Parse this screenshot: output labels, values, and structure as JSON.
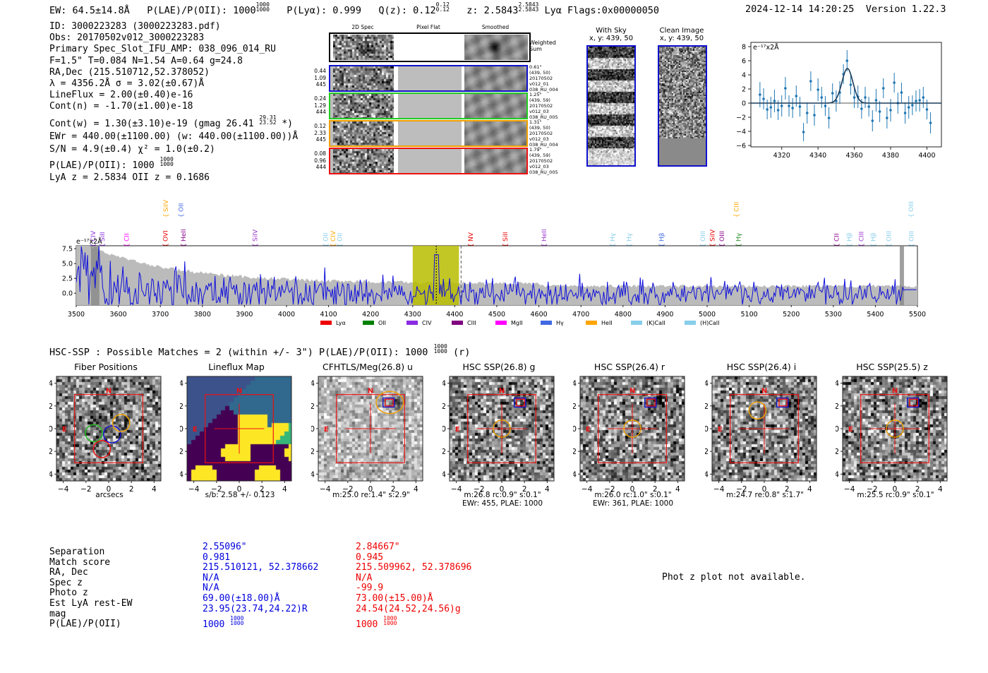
{
  "header": {
    "ew": "EW: 64.5±14.8Å",
    "plae_label": "P(LAE)/P(OII): 1000",
    "plae_frac": [
      "1000",
      "1000"
    ],
    "plya": "P(Lyα): 0.999",
    "qz_label": "Q(z): 0.12",
    "qz_frac": [
      "0.12",
      "0.12"
    ],
    "z_label": "z: 2.5843",
    "z_frac": [
      "2.5843",
      "2.5843"
    ],
    "lya_flags": "Lyα  Flags:0x00000050",
    "timestamp": "2024-12-14 14:20:25",
    "version": "Version 1.22.3"
  },
  "info": {
    "id": "ID: 3000223283 (3000223283.pdf)",
    "obs": "Obs: 20170502v012_3000223283",
    "primary": "Primary Spec_Slot_IFU_AMP: 038_096_014_RU",
    "fparams": "F=1.5\"  T=0.084  N=1.54  A=0.64  g=24.8",
    "radec": "RA,Dec (215.510712,52.378052)",
    "lambda": "λ = 4356.2Å   σ = 3.02(±0.67)Å",
    "lineflux": "LineFlux = 2.00(±0.40)e-16",
    "contn": "Cont(n) = -1.70(±1.00)e-18",
    "contw_a": "Cont(w) = 1.30(±3.10)e-19 (gmag 26.41",
    "contw_frac": [
      "29.31",
      "23.52"
    ],
    "contw_b": "*)",
    "ewr": "EWr = 440.00(±1100.00) (w: 440.00(±1100.00))Å",
    "sn": "S/N = 4.9(±0.4)  χ² = 1.0(±0.2)",
    "plae": "P(LAE)/P(OII): 1000",
    "plae_frac": [
      "1000",
      "1000"
    ],
    "zline": "LyA z = 2.5834  OII z = 0.1686"
  },
  "spec2d": {
    "col_titles": [
      "2D Spec",
      "Pixel Flat",
      "Smoothed"
    ],
    "weighted_label": "Weighted Sum",
    "rows": [
      {
        "nums": [
          "0.44",
          "1.09",
          "445"
        ],
        "meta": [
          "0.61\"",
          "(439, 50)",
          "20170502",
          "v012_01",
          "038_RU_004"
        ],
        "color": "#1010cc"
      },
      {
        "nums": [
          "0.24",
          "1.29",
          "444"
        ],
        "meta": [
          "1.25\"",
          "(439, 59)",
          "20170502",
          "v012_03",
          "038_RU_005"
        ],
        "color": "#22cc22"
      },
      {
        "nums": [
          "0.12",
          "2.33",
          "445"
        ],
        "meta": [
          "1.31\"",
          "(439, 50)",
          "20170502",
          "v012_03",
          "038_RU_004"
        ],
        "color": "#f0a000"
      },
      {
        "nums": [
          "0.08",
          "0.96",
          "444"
        ],
        "meta": [
          "1.79\"",
          "(439, 59)",
          "20170502",
          "v012_03",
          "038_RU_005"
        ],
        "color": "#ee1111"
      }
    ]
  },
  "sky": {
    "with_sky": {
      "title": "With Sky",
      "coords": "x, y: 439, 50"
    },
    "clean": {
      "title": "Clean Image",
      "coords": "x, y: 439, 50"
    }
  },
  "zoom_chart": {
    "type": "line",
    "unit_label": "e⁻¹⁷x2Å",
    "xlim": [
      4303,
      4408
    ],
    "ylim": [
      -6.2,
      8.6
    ],
    "xticks": [
      4320,
      4340,
      4360,
      4380,
      4400
    ],
    "yticks": [
      -6,
      -4,
      -2,
      0,
      2,
      4,
      6,
      8
    ],
    "points": [
      [
        4308,
        1.2
      ],
      [
        4310,
        0.6
      ],
      [
        4312,
        -0.9
      ],
      [
        4314,
        -0.6
      ],
      [
        4316,
        0.3
      ],
      [
        4318,
        -1.0
      ],
      [
        4320,
        -0.4
      ],
      [
        4322,
        2.1
      ],
      [
        4324,
        -0.4
      ],
      [
        4326,
        -0.7
      ],
      [
        4328,
        1.0
      ],
      [
        4330,
        -0.5
      ],
      [
        4332,
        -4.1
      ],
      [
        4334,
        -1.4
      ],
      [
        4336,
        3.1
      ],
      [
        4338,
        -1.7
      ],
      [
        4340,
        1.9
      ],
      [
        4342,
        0.8
      ],
      [
        4344,
        -0.4
      ],
      [
        4346,
        -2.1
      ],
      [
        4348,
        1.4
      ],
      [
        4350,
        0.3
      ],
      [
        4352,
        1.5
      ],
      [
        4354,
        4.1
      ],
      [
        4356,
        6.0
      ],
      [
        4358,
        2.6
      ],
      [
        4360,
        0.8
      ],
      [
        4362,
        0.9
      ],
      [
        4364,
        -0.8
      ],
      [
        4366,
        0.8
      ],
      [
        4368,
        -0.5
      ],
      [
        4370,
        -2.5
      ],
      [
        4372,
        0.4
      ],
      [
        4374,
        -1.2
      ],
      [
        4376,
        2.1
      ],
      [
        4378,
        -2.1
      ],
      [
        4380,
        -1.0
      ],
      [
        4382,
        2.9
      ],
      [
        4384,
        0.0
      ],
      [
        4386,
        1.5
      ],
      [
        4388,
        -1.4
      ],
      [
        4390,
        -0.6
      ],
      [
        4392,
        -0.3
      ],
      [
        4394,
        0.3
      ],
      [
        4396,
        0.4
      ],
      [
        4398,
        0.8
      ],
      [
        4400,
        -0.9
      ],
      [
        4402,
        -2.8
      ]
    ],
    "errors": [
      1.8,
      1.5,
      1.4,
      1.5,
      1.6,
      1.4,
      1.5,
      1.6,
      1.5,
      1.4,
      1.5,
      1.4,
      1.3,
      1.5,
      1.4,
      1.5,
      1.6,
      1.5,
      1.4,
      1.5,
      1.4,
      1.5,
      1.6,
      1.4,
      1.5,
      1.4,
      1.5,
      1.6,
      1.4,
      1.5,
      1.4,
      1.5,
      1.6,
      1.5,
      1.4,
      1.5,
      1.6,
      1.4,
      1.5,
      1.4,
      1.5,
      1.6,
      1.4,
      1.5,
      1.6,
      1.5,
      1.4,
      1.5
    ],
    "fit": {
      "amp": 4.9,
      "center": 4356.2,
      "sigma": 3.02
    }
  },
  "full_spectrum": {
    "type": "line",
    "unit_label": "e⁻¹⁷x2Å",
    "xlim": [
      3500,
      5500
    ],
    "ylim": [
      -2,
      8
    ],
    "xticks": [
      3500,
      3600,
      3700,
      3800,
      3900,
      4000,
      4100,
      4200,
      4300,
      4400,
      4500,
      4600,
      4700,
      4800,
      4900,
      5000,
      5100,
      5200,
      5300,
      5400,
      5500
    ],
    "yticks": [
      "0.0",
      "2.5",
      "5.0",
      "7.5"
    ],
    "highlight": [
      4300,
      4410
    ],
    "dashed": 4415,
    "line_labels": [
      {
        "name": "CIV",
        "x": 3540,
        "color": "#8a2be2",
        "high": false
      },
      {
        "name": "SiII",
        "x": 3562,
        "color": "#8a2be2",
        "high": false
      },
      {
        "name": "CII",
        "x": 3620,
        "color": "#ff00ff",
        "high": false
      },
      {
        "name": "SiIV",
        "x": 3713,
        "color": "#ffa500",
        "high": true
      },
      {
        "name": "OVI",
        "x": 3712,
        "color": "#ee0000",
        "high": false
      },
      {
        "name": "OII",
        "x": 3749,
        "color": "#4169e1",
        "high": true
      },
      {
        "name": "HeII",
        "x": 3755,
        "color": "#8b008b",
        "high": false
      },
      {
        "name": "SiIV",
        "x": 3925,
        "color": "#9932cc",
        "high": false
      },
      {
        "name": "OII",
        "x": 4093,
        "color": "#87ceeb",
        "high": false
      },
      {
        "name": "CIV",
        "x": 4111,
        "color": "#ffa500",
        "high": false
      },
      {
        "name": "OII",
        "x": 4127,
        "color": "#87ceeb",
        "high": false
      },
      {
        "name": "NV",
        "x": 4438,
        "color": "#ee0000",
        "high": false
      },
      {
        "name": "SiII",
        "x": 4520,
        "color": "#ee0000",
        "high": false
      },
      {
        "name": "HeII",
        "x": 4612,
        "color": "#9932cc",
        "high": false
      },
      {
        "name": "Hγ",
        "x": 4775,
        "color": "#87ceeb",
        "high": false
      },
      {
        "name": "Hγ",
        "x": 4815,
        "color": "#87ceeb",
        "high": false
      },
      {
        "name": "Hβ",
        "x": 4892,
        "color": "#4169e1",
        "high": false
      },
      {
        "name": "OIII",
        "x": 4990,
        "color": "#87ceeb",
        "high": false
      },
      {
        "name": "SiIV",
        "x": 5013,
        "color": "#ee0000",
        "high": false
      },
      {
        "name": "OIII",
        "x": 5035,
        "color": "#8b008b",
        "high": false
      },
      {
        "name": "CIII",
        "x": 5070,
        "color": "#ffa500",
        "high": true
      },
      {
        "name": "Hγ",
        "x": 5075,
        "color": "#228b22",
        "high": false
      },
      {
        "name": "CII",
        "x": 5308,
        "color": "#8b008b",
        "high": false
      },
      {
        "name": "Hβ",
        "x": 5338,
        "color": "#87ceeb",
        "high": false
      },
      {
        "name": "CIII",
        "x": 5367,
        "color": "#9932cc",
        "high": false
      },
      {
        "name": "Hβ",
        "x": 5395,
        "color": "#87ceeb",
        "high": false
      },
      {
        "name": "OIII",
        "x": 5432,
        "color": "#87ceeb",
        "high": false
      },
      {
        "name": "OIII",
        "x": 5485,
        "color": "#87ceeb",
        "high": true
      },
      {
        "name": "OIII",
        "x": 5486,
        "color": "#87ceeb",
        "high": false
      }
    ],
    "legend": [
      {
        "name": "Lyα",
        "color": "#ee0000"
      },
      {
        "name": "OII",
        "color": "#008000"
      },
      {
        "name": "CIV",
        "color": "#8a2be2"
      },
      {
        "name": "CIII",
        "color": "#800080"
      },
      {
        "name": "MgII",
        "color": "#ff00ff"
      },
      {
        "name": "Hγ",
        "color": "#4169e1"
      },
      {
        "name": "HeII",
        "color": "#ffa500"
      },
      {
        "name": "(K)CaII",
        "color": "#87ceeb"
      },
      {
        "name": "(H)CaII",
        "color": "#87ceeb"
      }
    ]
  },
  "hsc": {
    "summary_a": "HSC-SSP : Possible Matches = 2 (within +/- 3\")  P(LAE)/P(OII): 1000",
    "summary_frac": [
      "1000",
      "1000"
    ],
    "summary_b": "(r)"
  },
  "panels": [
    {
      "title": "Fiber Positions",
      "cap1": "arcsecs",
      "cap2": ""
    },
    {
      "title": "Lineflux Map",
      "cap1": "s/b: 2.58 +/- 0.123",
      "cap2": ""
    },
    {
      "title": "CFHTLS/Meg(26.8) u",
      "cap1": "m:25.0  re:1.4\"  s:2.9\"",
      "cap2": ""
    },
    {
      "title": "HSC SSP(26.8) g",
      "cap1": "m:26.8 rc:0.9\"  s:0.1\"",
      "cap2": "EWr: 455, PLAE: 1000"
    },
    {
      "title": "HSC SSP(26.4) r",
      "cap1": "m:26.0 rc:1.0\"  s:0.1\"",
      "cap2": "EWr: 361, PLAE: 1000"
    },
    {
      "title": "HSC SSP(26.4) i",
      "cap1": "m:24.7  re:0.8\"  s:1.7\"",
      "cap2": ""
    },
    {
      "title": "HSC SSP(25.5) z",
      "cap1": "m:25.5 rc:0.9\"  s:0.1\"",
      "cap2": ""
    }
  ],
  "panel_axis_ticks": [
    "4",
    "2",
    "0",
    "−2",
    "−4"
  ],
  "panel_compass": {
    "north": "N",
    "east": "E"
  },
  "match_table": {
    "labels": [
      "Separation",
      "Match score",
      "RA, Dec",
      "Spec z",
      "Photo z",
      "Est LyA rest-EW",
      "mag",
      "P(LAE)/P(OII)"
    ],
    "col_blue": [
      "2.55096\"",
      "0.981",
      "215.510121, 52.378662",
      "N/A",
      "N/A",
      "69.00(±18.00)Å",
      "23.95(23.74,24.22)R",
      "1000"
    ],
    "col_red": [
      "2.84667\"",
      "0.945",
      "215.509962, 52.378696",
      "N/A",
      "-99.9",
      "73.00(±15.00)Å",
      "24.54(24.52,24.56)g",
      "1000"
    ],
    "frac": [
      "1000",
      "1000"
    ]
  },
  "photz_note": "Phot z plot not available."
}
